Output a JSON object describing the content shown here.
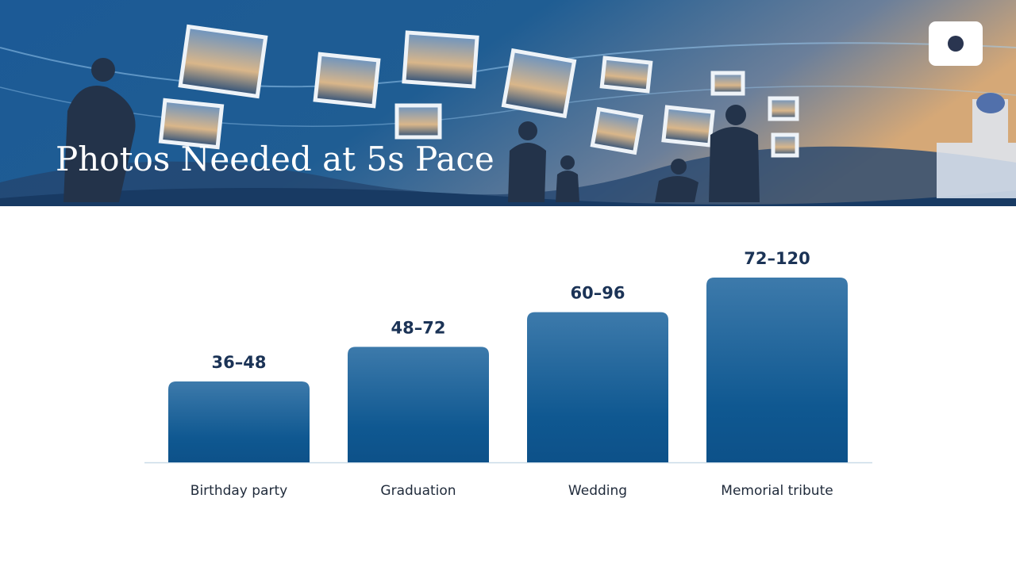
{
  "title": "Photos Needed at 5s Pace",
  "chart_data": {
    "type": "bar",
    "categories": [
      "Birthday party",
      "Graduation",
      "Wedding",
      "Memorial tribute"
    ],
    "low": [
      36,
      48,
      60,
      72
    ],
    "high": [
      48,
      72,
      96,
      120
    ],
    "value_labels": [
      "36–48",
      "48–72",
      "60–96",
      "72–120"
    ],
    "ylim": [
      0,
      110
    ],
    "color": "#0f5891"
  }
}
